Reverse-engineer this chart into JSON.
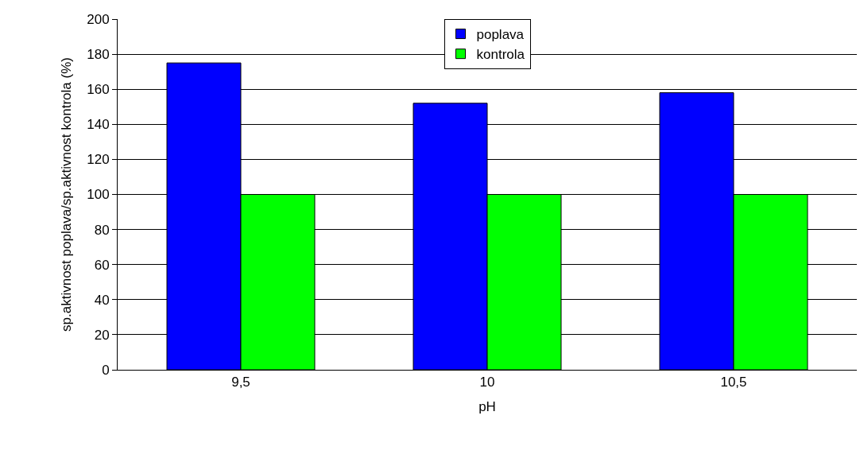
{
  "chart_data": {
    "type": "bar",
    "xlabel": "pH",
    "ylabel": "sp.aktivnost poplava/sp.aktivnost kontrola (%)",
    "categories": [
      "9,5",
      "10",
      "10,5"
    ],
    "series": [
      {
        "name": "poplava",
        "color": "#0000ff",
        "values": [
          175,
          152,
          158
        ]
      },
      {
        "name": "kontrola",
        "color": "#00ff00",
        "values": [
          100,
          100,
          100
        ]
      }
    ],
    "ylim": [
      0,
      200
    ],
    "yticks": [
      0,
      20,
      40,
      60,
      80,
      100,
      120,
      140,
      160,
      180,
      200
    ],
    "grid": "y",
    "legend": "top"
  }
}
